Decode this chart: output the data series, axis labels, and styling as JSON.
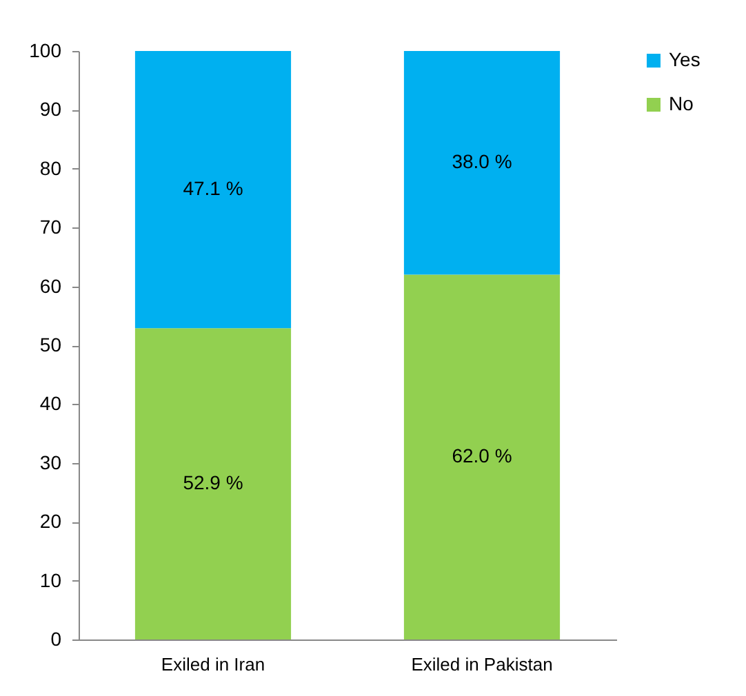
{
  "chart_data": {
    "type": "bar",
    "stacked": true,
    "categories": [
      "Exiled in Iran",
      "Exiled in Pakistan"
    ],
    "series": [
      {
        "name": "No",
        "color": "#92d050",
        "values": [
          52.9,
          62.0
        ],
        "value_labels": [
          "52.9 %",
          "62.0 %"
        ]
      },
      {
        "name": "Yes",
        "color": "#00b0f0",
        "values": [
          47.1,
          38.0
        ],
        "value_labels": [
          "47.1 %",
          "38.0 %"
        ]
      }
    ],
    "ylim": [
      0,
      100
    ],
    "yticks": [
      0,
      10,
      20,
      30,
      40,
      50,
      60,
      70,
      80,
      90,
      100
    ],
    "grid": false,
    "legend": "right"
  }
}
